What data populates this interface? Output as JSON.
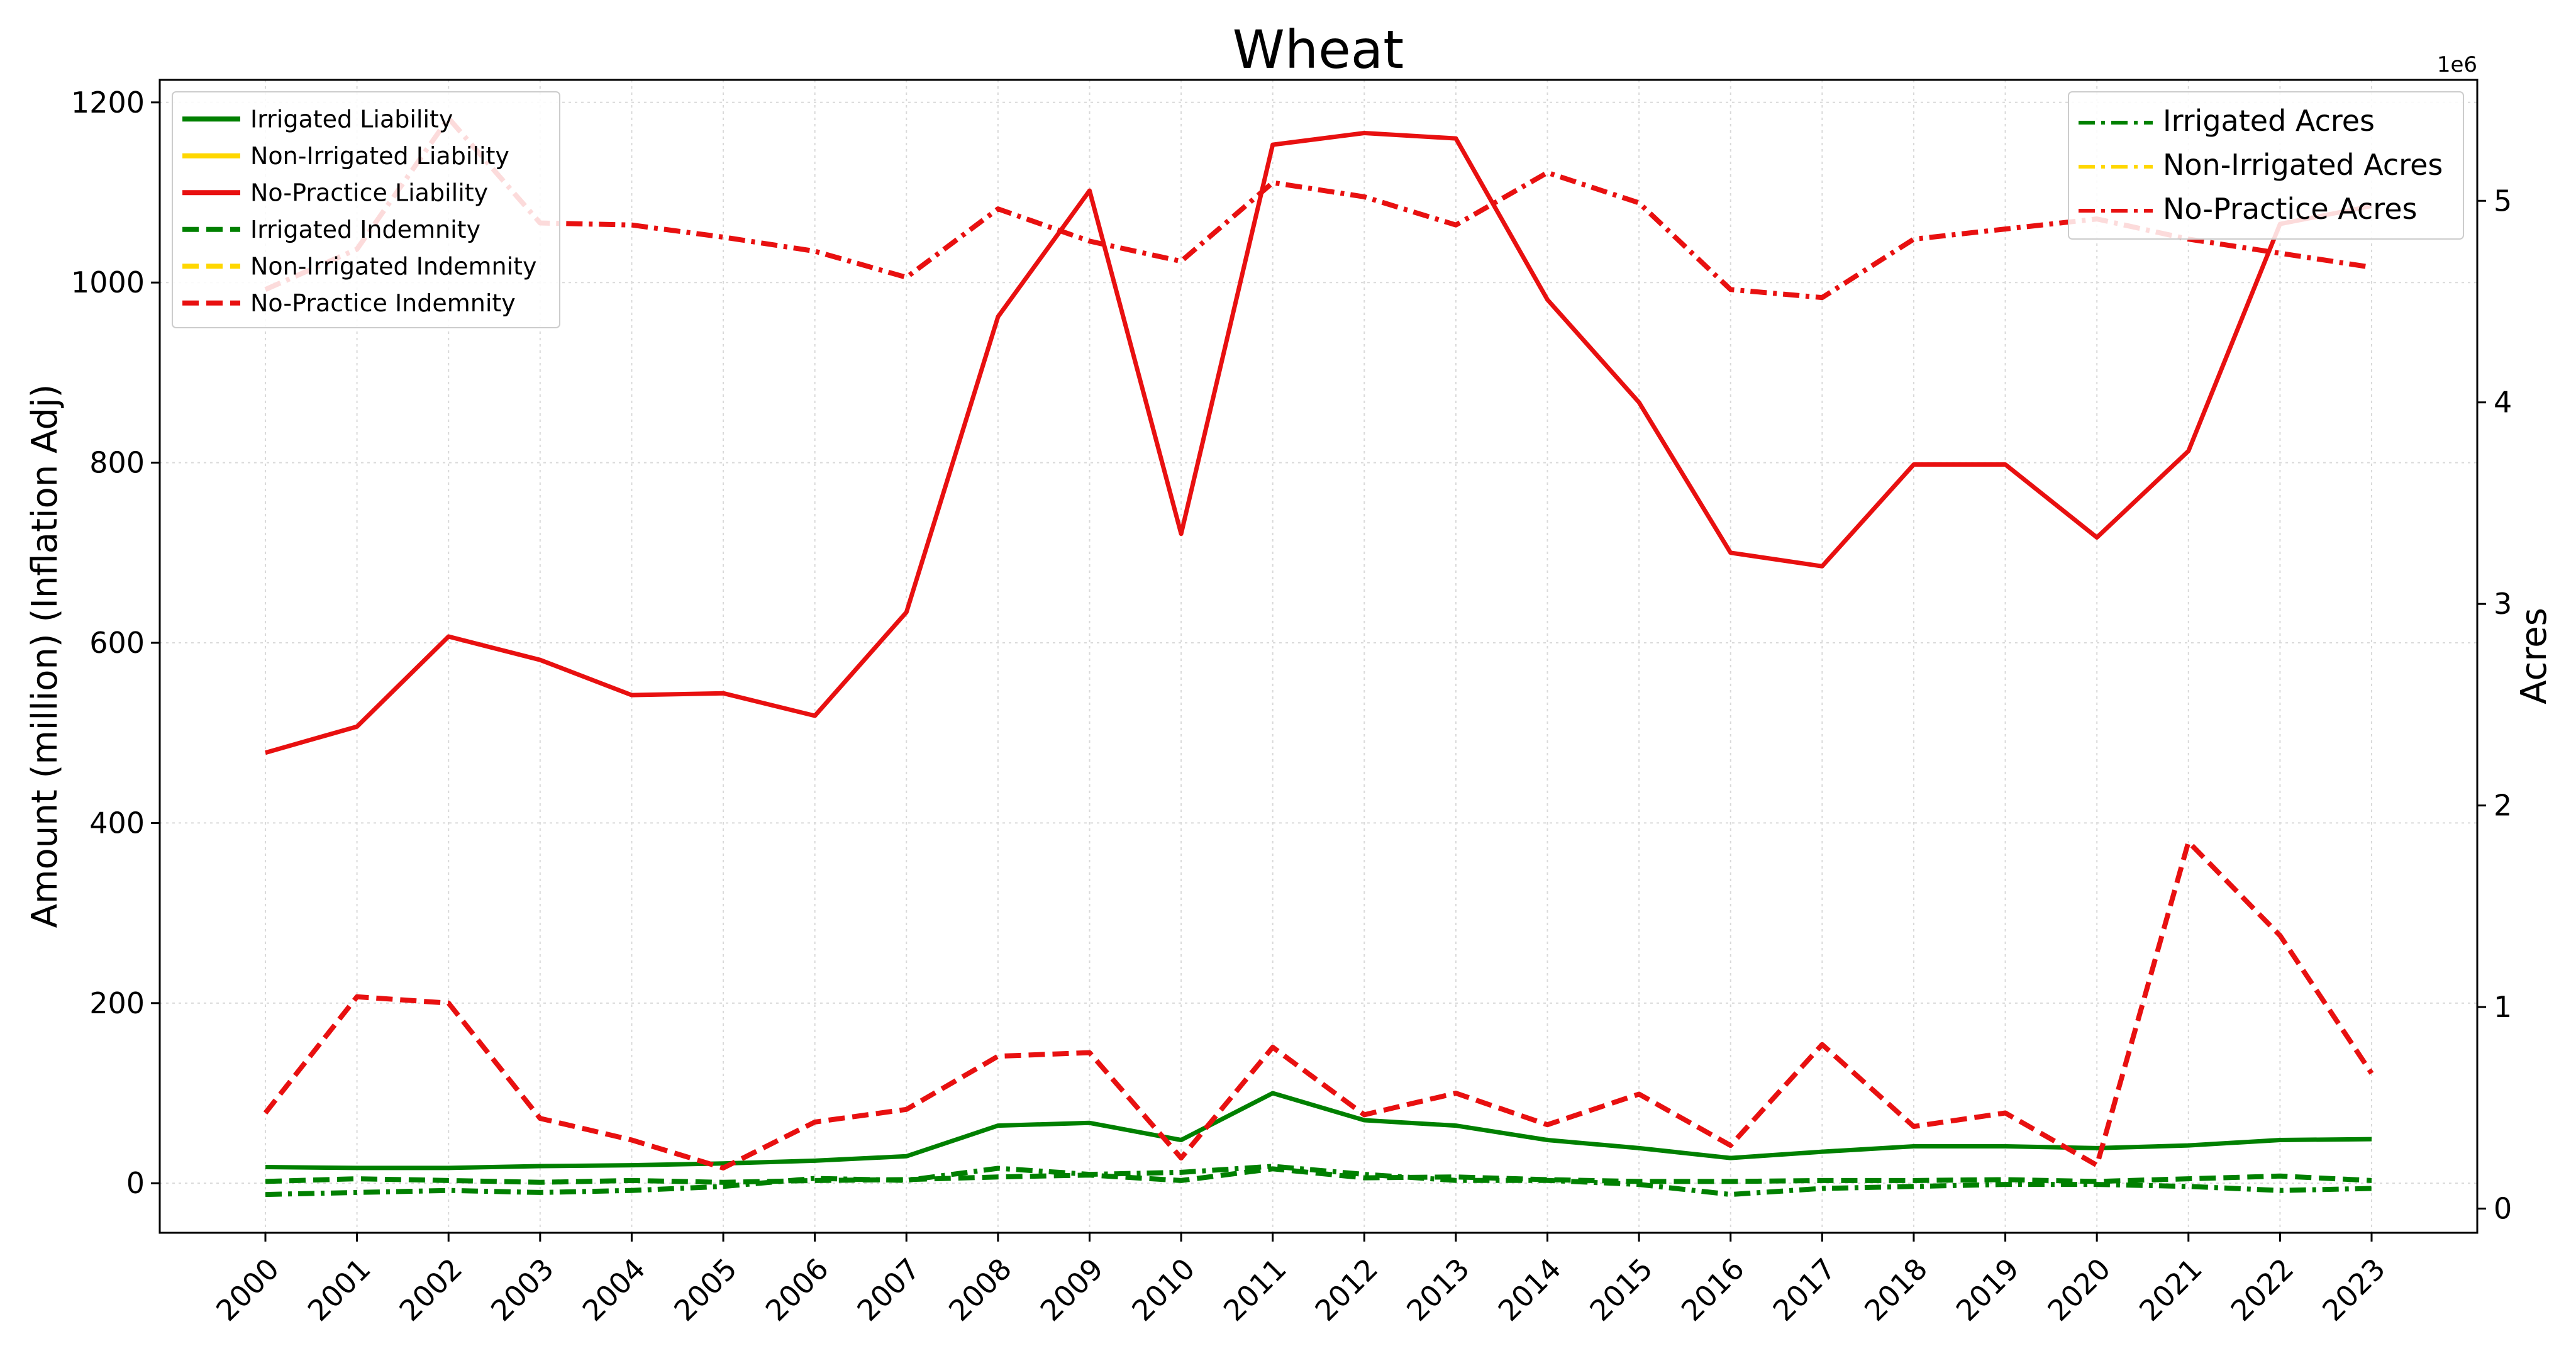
{
  "chart_data": {
    "type": "line",
    "title": "Wheat",
    "x": [
      "2000",
      "2001",
      "2002",
      "2003",
      "2004",
      "2005",
      "2006",
      "2007",
      "2008",
      "2009",
      "2010",
      "2011",
      "2012",
      "2013",
      "2014",
      "2015",
      "2016",
      "2017",
      "2018",
      "2019",
      "2020",
      "2021",
      "2022",
      "2023"
    ],
    "left_axis": {
      "ylabel": "Amount (million) (Inflation Adj)",
      "ylim": [
        -55,
        1225
      ],
      "ticks": [
        0,
        200,
        400,
        600,
        800,
        1000,
        1200
      ]
    },
    "right_axis": {
      "ylabel": "Acres",
      "offset_text": "1e6",
      "ylim": [
        -0.12,
        5.6
      ],
      "ticks": [
        0,
        1,
        2,
        3,
        4,
        5
      ]
    },
    "grid": true,
    "colors": {
      "irrigated": "#008000",
      "non_irrigated": "#FFD700",
      "no_practice": "#E81010"
    },
    "series_left": [
      {
        "name": "Irrigated Liability",
        "color": "#008000",
        "style": "solid",
        "values": [
          18,
          17,
          17,
          19,
          20,
          22,
          25,
          30,
          64,
          67,
          48,
          100,
          70,
          64,
          48,
          39,
          28,
          35,
          41,
          41,
          39,
          42,
          48,
          49
        ]
      },
      {
        "name": "Non-Irrigated Liability",
        "color": "#FFD700",
        "style": "solid",
        "values": []
      },
      {
        "name": "No-Practice Liability",
        "color": "#E81010",
        "style": "solid",
        "values": [
          478,
          507,
          607,
          581,
          542,
          544,
          519,
          634,
          962,
          1102,
          721,
          1153,
          1166,
          1160,
          981,
          867,
          700,
          685,
          798,
          798,
          717,
          813,
          1065,
          1085
        ]
      },
      {
        "name": "Irrigated Indemnity",
        "color": "#008000",
        "style": "dashed",
        "values": [
          2,
          5,
          3,
          1,
          3,
          1,
          3,
          4,
          7,
          9,
          3,
          16,
          6,
          7,
          4,
          2,
          2,
          3,
          3,
          4,
          2,
          5,
          8,
          3
        ]
      },
      {
        "name": "Non-Irrigated Indemnity",
        "color": "#FFD700",
        "style": "dashed",
        "values": []
      },
      {
        "name": "No-Practice Indemnity",
        "color": "#E81010",
        "style": "dashed",
        "values": [
          78,
          207,
          200,
          72,
          48,
          17,
          68,
          82,
          141,
          145,
          28,
          151,
          76,
          100,
          65,
          99,
          42,
          154,
          63,
          78,
          20,
          379,
          275,
          122
        ]
      }
    ],
    "series_right": [
      {
        "name": "Irrigated Acres",
        "color": "#008000",
        "style": "dashdot",
        "values": [
          0.07,
          0.08,
          0.09,
          0.08,
          0.09,
          0.11,
          0.15,
          0.14,
          0.2,
          0.17,
          0.18,
          0.21,
          0.17,
          0.14,
          0.14,
          0.12,
          0.07,
          0.1,
          0.11,
          0.12,
          0.12,
          0.11,
          0.09,
          0.1
        ]
      },
      {
        "name": "Non-Irrigated Acres",
        "color": "#FFD700",
        "style": "dashdot",
        "values": []
      },
      {
        "name": "No-Practice Acres",
        "color": "#E81010",
        "style": "dashdot",
        "values": [
          4.56,
          4.76,
          5.41,
          4.89,
          4.88,
          4.82,
          4.75,
          4.62,
          4.96,
          4.8,
          4.7,
          5.09,
          5.02,
          4.88,
          5.14,
          4.99,
          4.56,
          4.52,
          4.81,
          4.86,
          4.91,
          4.81,
          4.74,
          4.67
        ]
      }
    ],
    "legend_left_position": "upper-left",
    "legend_right_position": "upper-right"
  }
}
